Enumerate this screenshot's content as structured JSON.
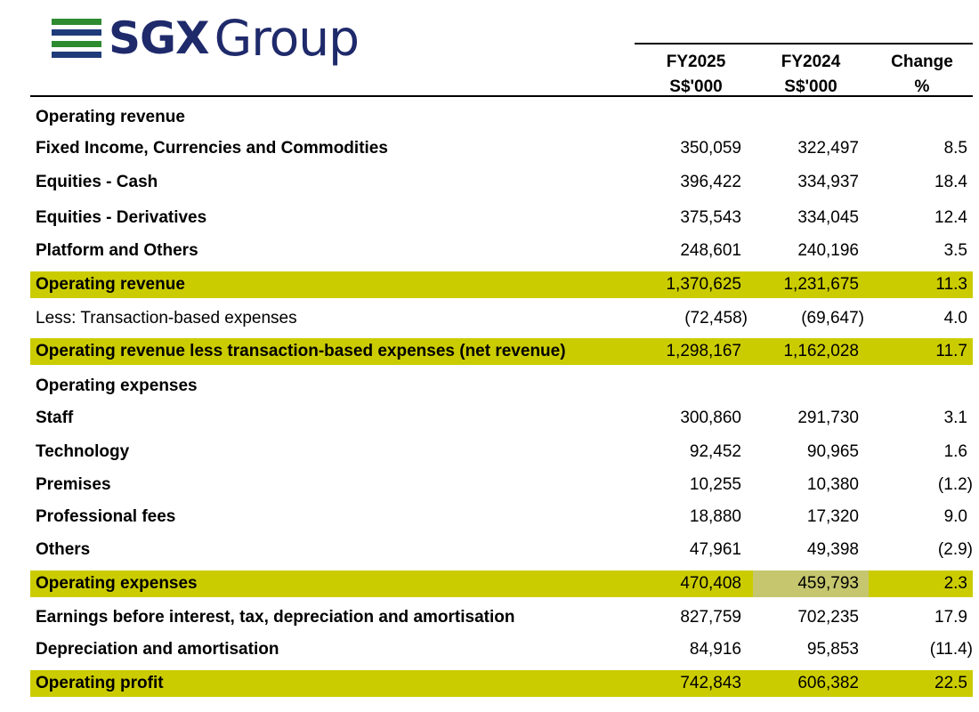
{
  "logo": {
    "bar_colors": [
      "#2e8b2f",
      "#1f3b7a",
      "#2e8b2f",
      "#1f3b7a"
    ],
    "sgx_text": "SGX",
    "group_text": "Group",
    "text_color": "#1f2a6b"
  },
  "header": {
    "col1": {
      "line1": "FY2025",
      "line2": "S$'000"
    },
    "col2": {
      "line1": "FY2024",
      "line2": "S$'000"
    },
    "col3": {
      "line1": "Change",
      "line2": "%"
    }
  },
  "highlight_color": "#cbcc00",
  "rows": [
    {
      "label": "Operating revenue",
      "fy2025": "",
      "fy2024": "",
      "change": ""
    },
    {
      "label": "Fixed Income, Currencies and Commodities",
      "fy2025": "350,059",
      "fy2024": "322,497",
      "change": "8.5"
    },
    {
      "label": "Equities - Cash",
      "fy2025": "396,422",
      "fy2024": "334,937",
      "change": "18.4"
    },
    {
      "label": "Equities - Derivatives",
      "fy2025": "375,543",
      "fy2024": "334,045",
      "change": "12.4"
    },
    {
      "label": "Platform and Others",
      "fy2025": "248,601",
      "fy2024": "240,196",
      "change": "3.5"
    },
    {
      "label": "Operating revenue",
      "fy2025": "1,370,625",
      "fy2024": "1,231,675",
      "change": "11.3"
    },
    {
      "label": "Less: Transaction-based expenses",
      "fy2025": "(72,458)",
      "fy2024": "(69,647)",
      "change": "4.0"
    },
    {
      "label": "Operating revenue less transaction-based expenses (net revenue)",
      "fy2025": "1,298,167",
      "fy2024": "1,162,028",
      "change": "11.7"
    },
    {
      "label": "Operating expenses",
      "fy2025": "",
      "fy2024": "",
      "change": ""
    },
    {
      "label": "Staff",
      "fy2025": "300,860",
      "fy2024": "291,730",
      "change": "3.1"
    },
    {
      "label": "Technology",
      "fy2025": "92,452",
      "fy2024": "90,965",
      "change": "1.6"
    },
    {
      "label": "Premises",
      "fy2025": "10,255",
      "fy2024": "10,380",
      "change": "(1.2)"
    },
    {
      "label": "Professional fees",
      "fy2025": "18,880",
      "fy2024": "17,320",
      "change": "9.0"
    },
    {
      "label": "Others",
      "fy2025": "47,961",
      "fy2024": "49,398",
      "change": "(2.9)"
    },
    {
      "label": "Operating expenses",
      "fy2025": "470,408",
      "fy2024": "459,793",
      "change": "2.3"
    },
    {
      "label": "Earnings before interest, tax, depreciation and amortisation",
      "fy2025": "827,759",
      "fy2024": "702,235",
      "change": "17.9"
    },
    {
      "label": "Depreciation and amortisation",
      "fy2025": "84,916",
      "fy2024": "95,853",
      "change": "(11.4)"
    },
    {
      "label": "Operating profit",
      "fy2025": "742,843",
      "fy2024": "606,382",
      "change": "22.5"
    }
  ]
}
